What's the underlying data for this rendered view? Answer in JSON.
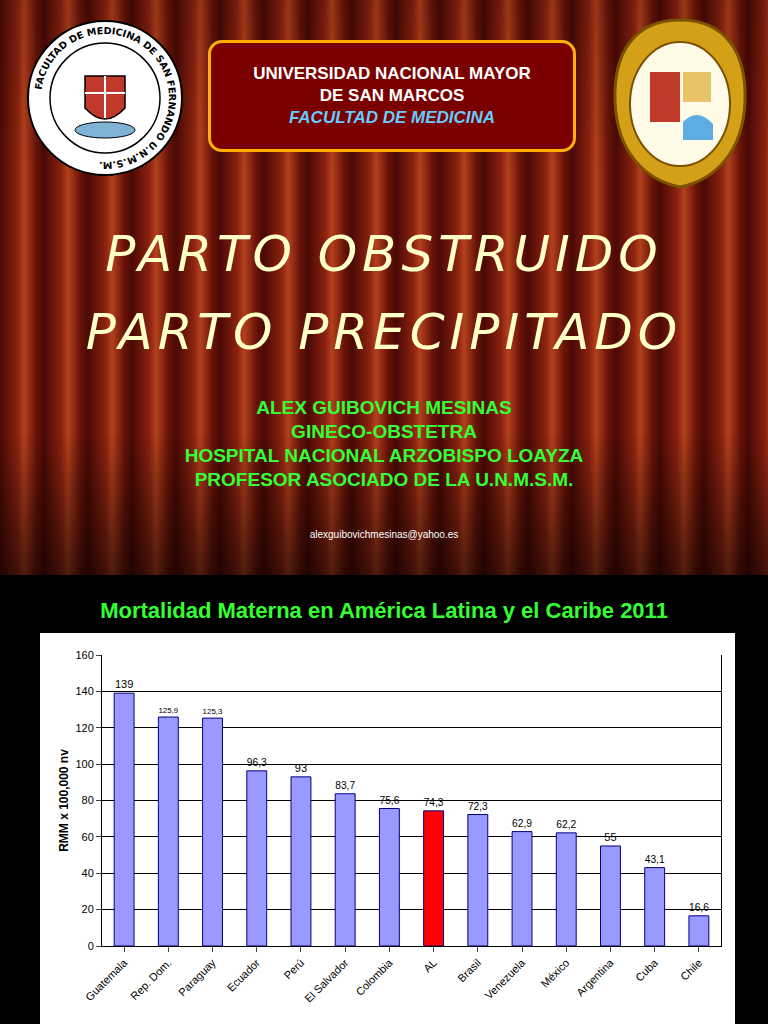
{
  "slide": {
    "header": [
      "UNIVERSIDAD NACIONAL MAYOR",
      "DE SAN MARCOS",
      "FACULTAD DE MEDICINA"
    ],
    "seal_left": "FACULTAD DE MEDICINA DE SAN FERNANDO U.N.M.S.M.",
    "title": [
      "PARTO OBSTRUIDO",
      "PARTO PRECIPITADO"
    ],
    "author": [
      "ALEX GUIBOVICH MESINAS",
      "GINECO-OBSTETRA",
      "HOSPITAL NACIONAL ARZOBISPO LOAYZA",
      "PROFESOR ASOCIADO DE LA U.N.M.S.M."
    ],
    "email": "alexguibovichmesinas@yahoo.es"
  },
  "chart_data": {
    "type": "bar",
    "title": "Mortalidad Materna en América Latina y el Caribe 2011",
    "y_label": "RMM x 100,000 nv",
    "categories": [
      "Guatemala",
      "Rep. Dom.",
      "Paraguay",
      "Ecuador",
      "Perú",
      "El Salvador",
      "Colombia",
      "AL",
      "Brasil",
      "Venezuela",
      "México",
      "Argentina",
      "Cuba",
      "Chile"
    ],
    "values": [
      139,
      125.9,
      125.3,
      96.3,
      93,
      83.7,
      75.6,
      74.3,
      72.3,
      62.9,
      62.2,
      55,
      43.1,
      16.6
    ],
    "value_labels": [
      "139",
      "125,9",
      "125,3",
      "96,3",
      "93",
      "83,7",
      "75,6",
      "74,3",
      "72,3",
      "62,9",
      "62,2",
      "55",
      "43,1",
      "16,6"
    ],
    "colors": [
      "#9999ff",
      "#9999ff",
      "#9999ff",
      "#9999ff",
      "#9999ff",
      "#9999ff",
      "#9999ff",
      "#ff0000",
      "#9999ff",
      "#9999ff",
      "#9999ff",
      "#9999ff",
      "#9999ff",
      "#9999ff"
    ],
    "ylim": [
      0,
      160
    ],
    "yticks": [
      0,
      20,
      40,
      60,
      80,
      100,
      120,
      140,
      160
    ],
    "grid": true,
    "data_labels": true
  }
}
